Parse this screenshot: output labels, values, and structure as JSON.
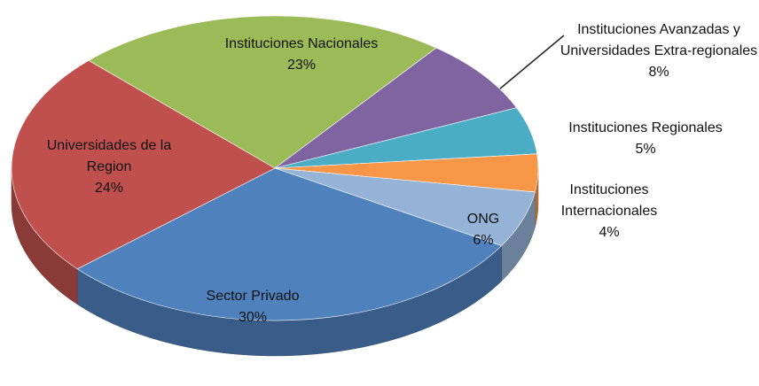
{
  "chart_data": {
    "type": "pie3d",
    "categories": [
      "Instituciones Nacionales",
      "Instituciones Avanzadas y Universidades Extra-regionales",
      "Instituciones Regionales",
      "Instituciones Internacionales",
      "ONG",
      "Sector Privado",
      "Universidades de la Region"
    ],
    "values": [
      23,
      8,
      5,
      4,
      6,
      30,
      24
    ],
    "value_labels": [
      "23%",
      "8%",
      "5%",
      "4%",
      "6%",
      "30%",
      "24%"
    ],
    "colors": [
      "#9bbb59",
      "#8064a2",
      "#4bacc6",
      "#f79646",
      "#95b3d7",
      "#4f81bd",
      "#c0504d"
    ]
  }
}
